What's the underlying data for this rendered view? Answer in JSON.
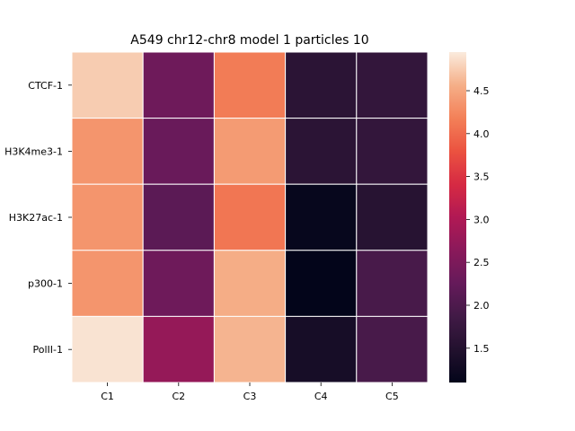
{
  "chart_data": {
    "type": "heatmap",
    "title": "A549 chr12-chr8 model 1 particles 10",
    "xlabel": "",
    "ylabel": "",
    "x_categories": [
      "C1",
      "C2",
      "C3",
      "C4",
      "C5"
    ],
    "y_categories": [
      "CTCF-1",
      "H3K4me3-1",
      "H3K27ac-1",
      "p300-1",
      "PolII-1"
    ],
    "values": [
      [
        4.75,
        2.35,
        4.15,
        1.6,
        1.7
      ],
      [
        4.35,
        2.3,
        4.4,
        1.6,
        1.7
      ],
      [
        4.35,
        2.15,
        4.1,
        1.15,
        1.55
      ],
      [
        4.35,
        2.35,
        4.55,
        1.1,
        1.95
      ],
      [
        4.9,
        2.75,
        4.6,
        1.35,
        1.95
      ]
    ],
    "vmin": 1.1,
    "vmax": 4.95,
    "colormap": "rocket",
    "colorbar": {
      "ticks": [
        1.5,
        2.0,
        2.5,
        3.0,
        3.5,
        4.0,
        4.5
      ],
      "tick_labels": [
        "1.5",
        "2.0",
        "2.5",
        "3.0",
        "3.5",
        "4.0",
        "4.5"
      ]
    },
    "grid_color": "#ffffff",
    "legend": "none"
  }
}
